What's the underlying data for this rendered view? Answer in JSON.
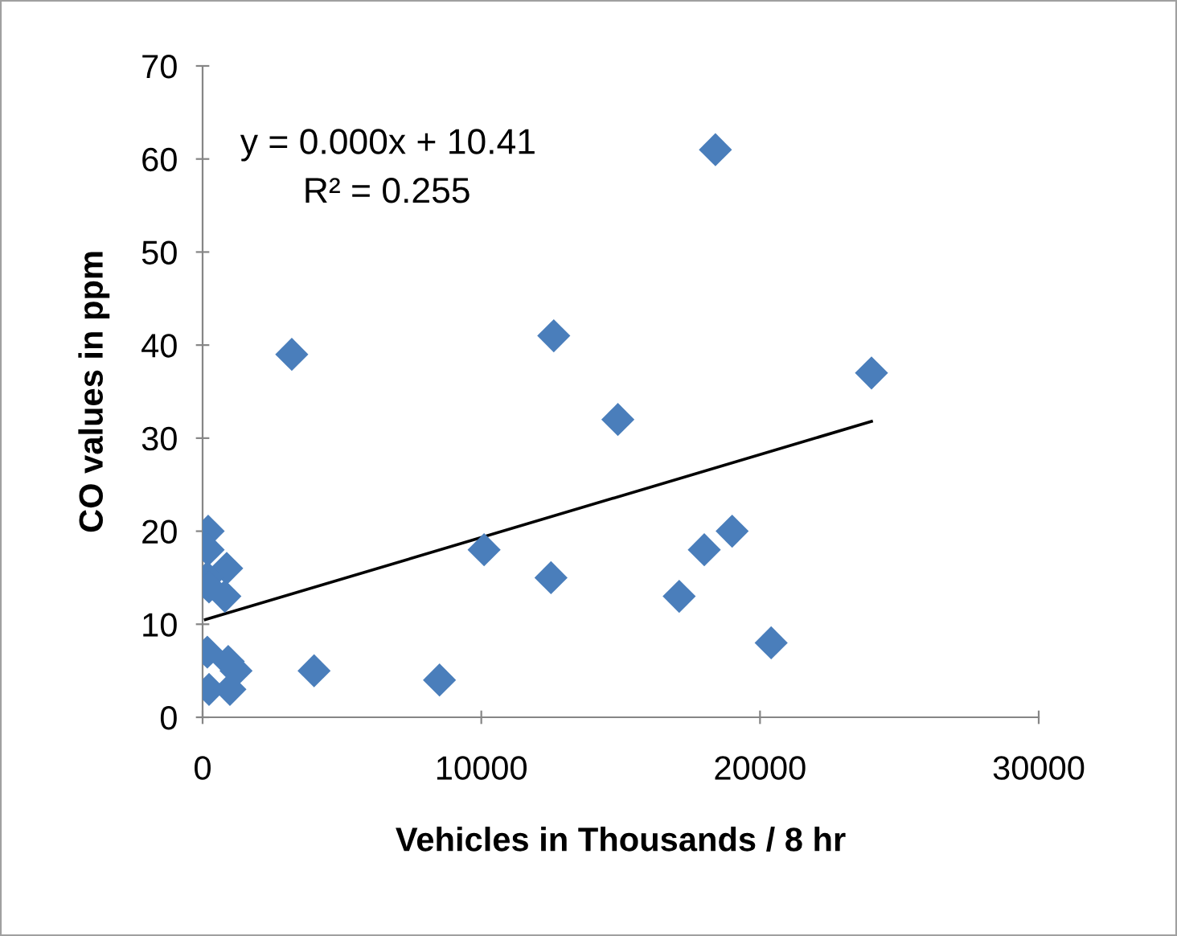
{
  "chart_data": {
    "type": "scatter",
    "xlabel": "Vehicles in Thousands / 8 hr",
    "ylabel": "CO values in ppm",
    "xlim": [
      0,
      30000
    ],
    "xticks": [
      0,
      10000,
      20000,
      30000
    ],
    "ylim": [
      0,
      70
    ],
    "yticks": [
      0,
      10,
      20,
      30,
      40,
      50,
      60,
      70
    ],
    "grid": false,
    "legend": false,
    "marker": "diamond",
    "annotations": [
      "y = 0.000x + 10.41",
      "R² = 0.255"
    ],
    "series": [
      {
        "color": "#4a7ebb",
        "x": [
          200,
          200,
          865,
          170,
          230,
          800,
          170,
          920,
          1200,
          230,
          980,
          3200,
          4000,
          8500,
          10100,
          12600,
          12500,
          14900,
          17100,
          18000,
          18400,
          19000,
          20400,
          24000
        ],
        "values": [
          20,
          18,
          16,
          15,
          14,
          13,
          7,
          6,
          5,
          3,
          3,
          39,
          5,
          4,
          18,
          41,
          15,
          32,
          13,
          18,
          61,
          20,
          8,
          37
        ]
      },
      {
        "type": "line",
        "color": "#000000",
        "line_style": "solid",
        "marker": "none",
        "x": [
          100,
          24000
        ],
        "values": [
          10.5,
          31.8
        ]
      }
    ]
  }
}
